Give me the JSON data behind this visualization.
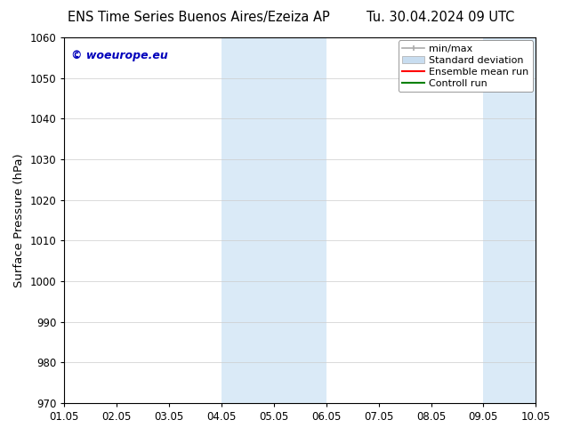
{
  "title_left": "ENS Time Series Buenos Aires/Ezeiza AP",
  "title_right": "Tu. 30.04.2024 09 UTC",
  "ylabel": "Surface Pressure (hPa)",
  "ylim": [
    970,
    1060
  ],
  "yticks": [
    970,
    980,
    990,
    1000,
    1010,
    1020,
    1030,
    1040,
    1050,
    1060
  ],
  "xlim": [
    0,
    9
  ],
  "xtick_positions": [
    0,
    1,
    2,
    3,
    4,
    5,
    6,
    7,
    8,
    9
  ],
  "xtick_labels": [
    "01.05",
    "02.05",
    "03.05",
    "04.05",
    "05.05",
    "06.05",
    "07.05",
    "08.05",
    "09.05",
    "10.05"
  ],
  "watermark": "© woeurope.eu",
  "watermark_color": "#0000bb",
  "shaded_regions": [
    {
      "x_start": 3,
      "x_end": 5,
      "color": "#daeaf7"
    },
    {
      "x_start": 8,
      "x_end": 9,
      "color": "#daeaf7"
    }
  ],
  "legend_entries": [
    {
      "label": "min/max"
    },
    {
      "label": "Standard deviation"
    },
    {
      "label": "Ensemble mean run"
    },
    {
      "label": "Controll run"
    }
  ],
  "background_color": "#ffffff",
  "grid_color": "#cccccc",
  "title_fontsize": 10.5,
  "tick_fontsize": 8.5,
  "label_fontsize": 9.5,
  "legend_fontsize": 8,
  "watermark_fontsize": 9
}
